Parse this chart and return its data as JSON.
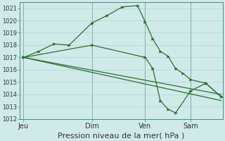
{
  "bg_color": "#d0eaea",
  "grid_color": "#aacccc",
  "line_color": "#2d6e2d",
  "marker_color": "#2d6e2d",
  "xlabel": "Pression niveau de la mer( hPa )",
  "xlabel_fontsize": 8,
  "ylim": [
    1012,
    1021.5
  ],
  "yticks": [
    1012,
    1013,
    1014,
    1015,
    1016,
    1017,
    1018,
    1019,
    1020,
    1021
  ],
  "ytick_fontsize": 6,
  "xtick_labels": [
    "Jeu",
    "Dim",
    "Ven",
    "Sam"
  ],
  "xtick_positions": [
    0,
    36,
    64,
    88
  ],
  "xlim": [
    -2,
    105
  ],
  "series1_x": [
    0,
    8,
    16,
    24,
    36,
    44,
    52,
    60,
    64,
    68,
    72,
    76,
    80,
    84,
    88,
    96,
    104
  ],
  "series1_y": [
    1017.0,
    1017.5,
    1018.1,
    1018.0,
    1019.8,
    1020.4,
    1021.1,
    1021.2,
    1019.9,
    1018.5,
    1017.5,
    1017.1,
    1016.1,
    1015.7,
    1015.2,
    1014.9,
    1013.8
  ],
  "series2_x": [
    0,
    36,
    64,
    68,
    72,
    76,
    80,
    88,
    96,
    104
  ],
  "series2_y": [
    1017.0,
    1018.0,
    1017.0,
    1016.1,
    1013.5,
    1012.8,
    1012.5,
    1014.3,
    1014.9,
    1013.8
  ],
  "series3_x": [
    0,
    104
  ],
  "series3_y": [
    1017.0,
    1013.5
  ],
  "series4_x": [
    0,
    104
  ],
  "series4_y": [
    1017.0,
    1014.0
  ],
  "vline_positions": [
    0,
    36,
    64,
    88
  ],
  "vline_color": "#4a8888",
  "spine_color": "#4a8888"
}
